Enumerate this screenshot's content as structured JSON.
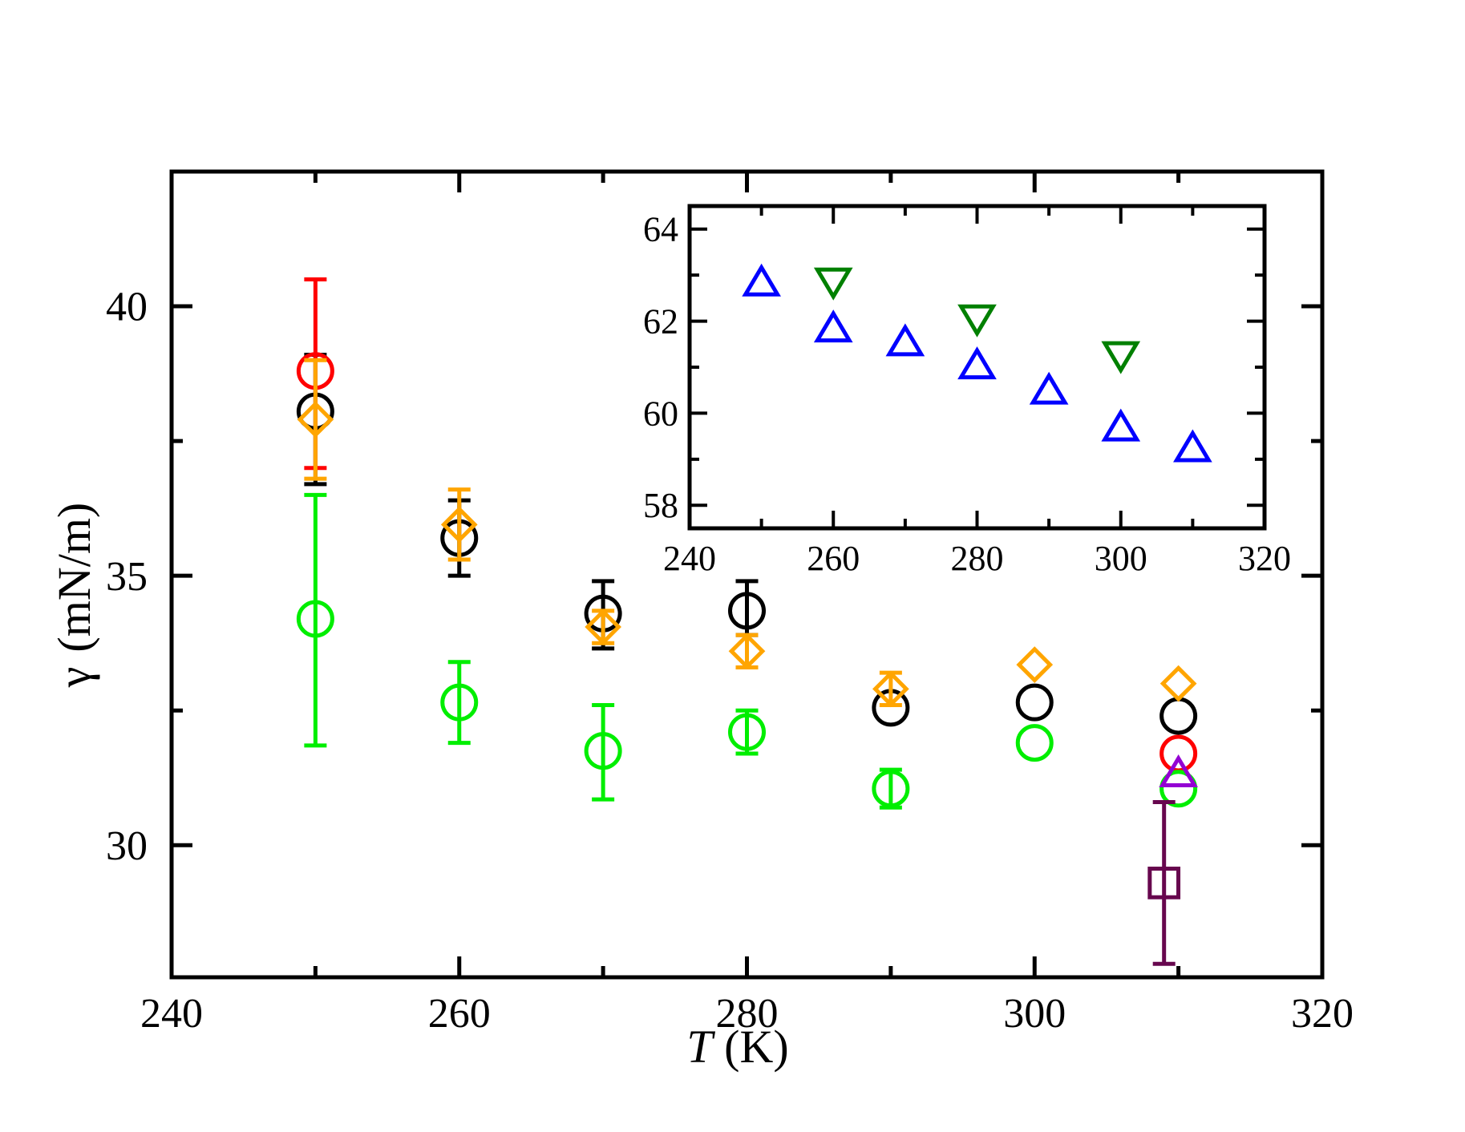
{
  "chart_data": [
    {
      "id": "main",
      "type": "scatter",
      "title": "",
      "xlabel": {
        "italic": "T",
        "rest": " (K)"
      },
      "ylabel": {
        "symbol": "γ",
        "units": "(mN/m)"
      },
      "xlim": [
        240,
        320
      ],
      "ylim": [
        27.55,
        42.5
      ],
      "xticks": [
        240,
        260,
        280,
        300,
        320
      ],
      "yticks": [
        30,
        35,
        40
      ],
      "xtick_labels": [
        "240",
        "260",
        "280",
        "300",
        "320"
      ],
      "ytick_labels": [
        "30",
        "35",
        "40"
      ],
      "grid": false,
      "legend": "none",
      "series": [
        {
          "name": "black circles",
          "marker": "circle",
          "color": "#000000",
          "points": [
            {
              "x": 250,
              "y": 38.05,
              "lo": 36.7,
              "hi": 39.1
            },
            {
              "x": 260,
              "y": 35.7,
              "lo": 35.0,
              "hi": 36.4
            },
            {
              "x": 270,
              "y": 34.3,
              "lo": 33.65,
              "hi": 34.9
            },
            {
              "x": 280,
              "y": 34.35,
              "lo": 33.9,
              "hi": 34.9
            },
            {
              "x": 290,
              "y": 32.55
            },
            {
              "x": 300,
              "y": 32.65
            },
            {
              "x": 310,
              "y": 32.4
            }
          ]
        },
        {
          "name": "red circles",
          "marker": "circle",
          "color": "#ff0000",
          "points": [
            {
              "x": 250,
              "y": 38.8,
              "lo": 37.0,
              "hi": 40.5
            },
            {
              "x": 310,
              "y": 31.7
            }
          ]
        },
        {
          "name": "orange diamonds",
          "marker": "diamond",
          "color": "#ffa500",
          "points": [
            {
              "x": 250,
              "y": 37.9,
              "lo": 36.8,
              "hi": 39.0
            },
            {
              "x": 260,
              "y": 35.95,
              "lo": 35.3,
              "hi": 36.6
            },
            {
              "x": 270,
              "y": 34.05,
              "lo": 33.75,
              "hi": 34.35
            },
            {
              "x": 280,
              "y": 33.6,
              "lo": 33.3,
              "hi": 33.9
            },
            {
              "x": 290,
              "y": 32.9,
              "lo": 32.6,
              "hi": 33.2
            },
            {
              "x": 300,
              "y": 33.35
            },
            {
              "x": 310,
              "y": 33.0
            }
          ]
        },
        {
          "name": "green circles",
          "marker": "circle",
          "color": "#00ee00",
          "points": [
            {
              "x": 250,
              "y": 34.2,
              "lo": 31.85,
              "hi": 36.5
            },
            {
              "x": 260,
              "y": 32.65,
              "lo": 31.9,
              "hi": 33.4
            },
            {
              "x": 270,
              "y": 31.75,
              "lo": 30.85,
              "hi": 32.6
            },
            {
              "x": 280,
              "y": 32.1,
              "lo": 31.7,
              "hi": 32.5
            },
            {
              "x": 290,
              "y": 31.05,
              "lo": 30.7,
              "hi": 31.4
            },
            {
              "x": 300,
              "y": 31.9
            },
            {
              "x": 310,
              "y": 31.05
            }
          ]
        },
        {
          "name": "violet triangle",
          "marker": "triangle-up",
          "color": "#9400d3",
          "points": [
            {
              "x": 310,
              "y": 31.3
            }
          ]
        },
        {
          "name": "maroon square",
          "marker": "square",
          "color": "#67074e",
          "points": [
            {
              "x": 309,
              "y": 29.3,
              "lo": 27.8,
              "hi": 30.8
            }
          ]
        }
      ]
    },
    {
      "id": "inset",
      "type": "scatter",
      "title": "",
      "xlabel": "",
      "ylabel": "",
      "xlim": [
        240,
        320
      ],
      "ylim": [
        57.5,
        64.5
      ],
      "xticks": [
        240,
        260,
        280,
        300,
        320
      ],
      "yticks": [
        58,
        60,
        62,
        64
      ],
      "xtick_labels": [
        "240",
        "260",
        "280",
        "300",
        "320"
      ],
      "ytick_labels": [
        "58",
        "60",
        "62",
        "64"
      ],
      "grid": false,
      "legend": "none",
      "series": [
        {
          "name": "blue triangles",
          "marker": "triangle-up",
          "color": "#0000ff",
          "points": [
            {
              "x": 250,
              "y": 62.8
            },
            {
              "x": 260,
              "y": 61.8
            },
            {
              "x": 270,
              "y": 61.5
            },
            {
              "x": 280,
              "y": 61.0
            },
            {
              "x": 290,
              "y": 60.45
            },
            {
              "x": 300,
              "y": 59.65
            },
            {
              "x": 310,
              "y": 59.2
            }
          ]
        },
        {
          "name": "green inverted triangles",
          "marker": "triangle-down",
          "color": "#008000",
          "points": [
            {
              "x": 260,
              "y": 62.9
            },
            {
              "x": 280,
              "y": 62.1
            },
            {
              "x": 300,
              "y": 61.3
            }
          ]
        }
      ]
    }
  ]
}
